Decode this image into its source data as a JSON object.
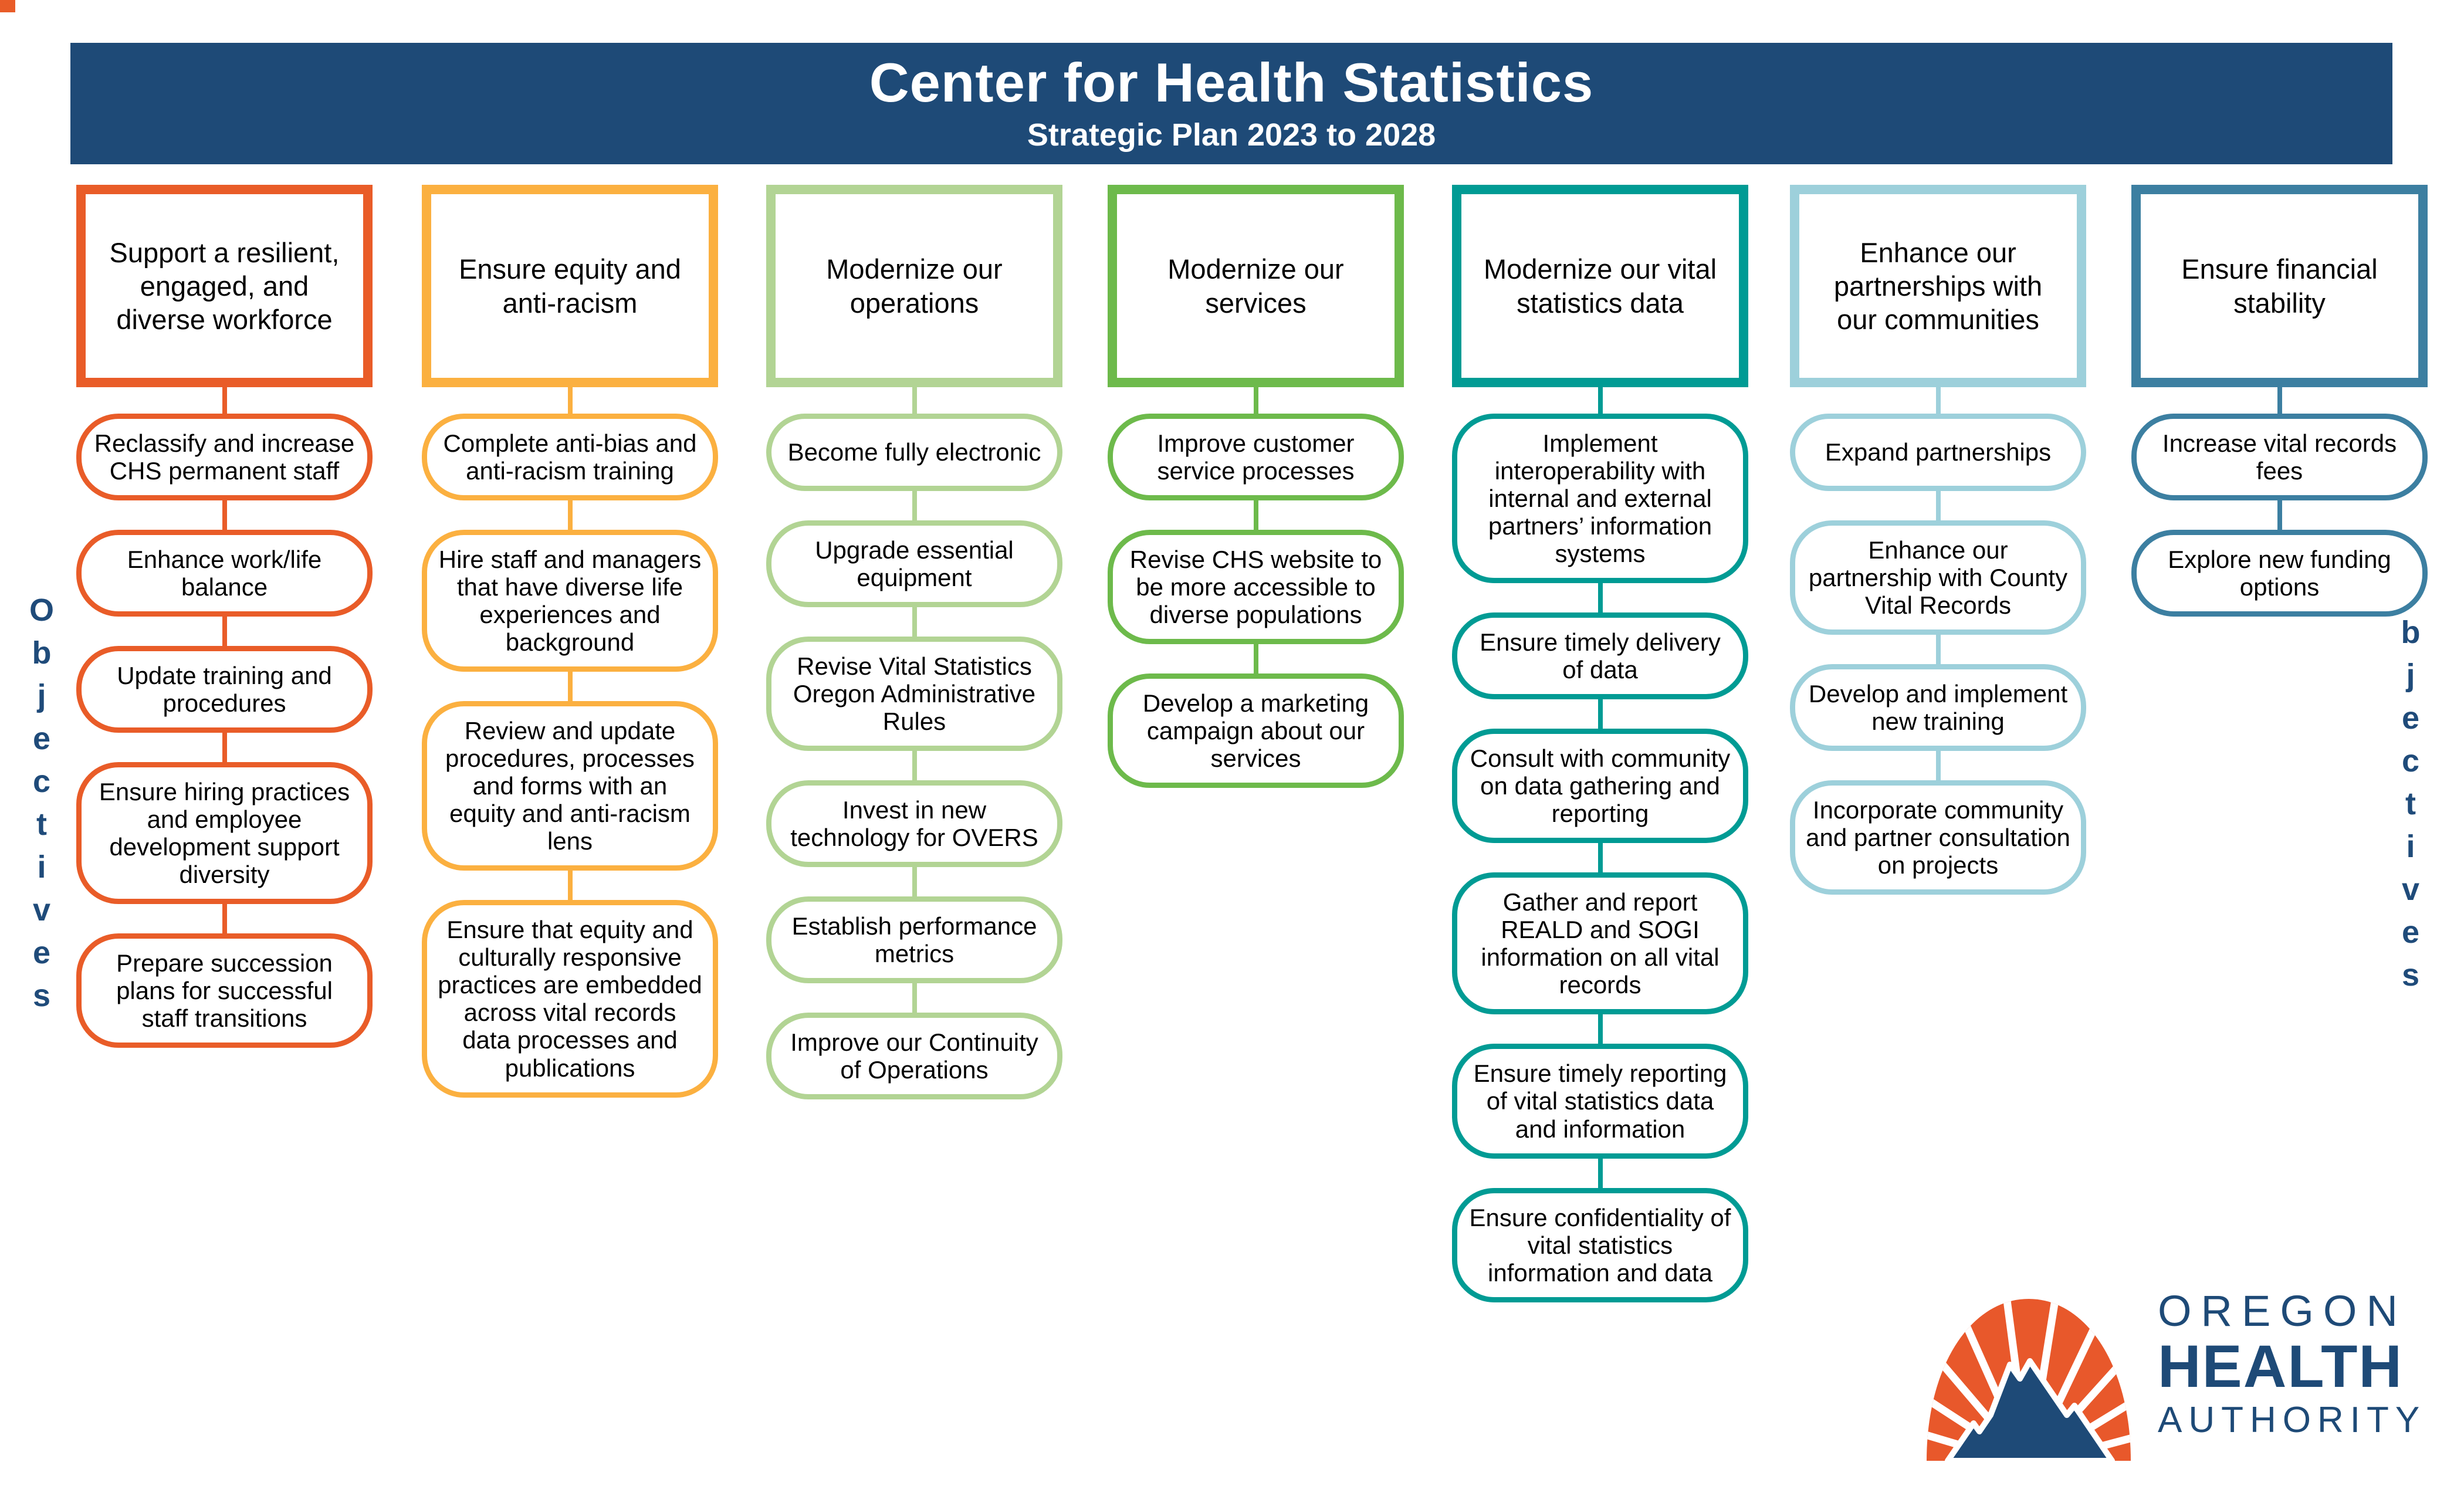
{
  "banner": {
    "title": "Center for Health Statistics",
    "subtitle": "Strategic Plan 2023 to 2028",
    "bg_color": "#1E4A77",
    "text_color": "#FFFFFF"
  },
  "side_labels": {
    "left": "Objectives",
    "right": "Objectives",
    "color": "#1F4B7A"
  },
  "columns": [
    {
      "header": "Support a resilient, engaged, and diverse workforce",
      "color": "#E95C28",
      "objectives": [
        "Reclassify and increase CHS permanent staff",
        "Enhance work/life balance",
        "Update training and procedures",
        "Ensure hiring practices and employee development support diversity",
        "Prepare succession plans for successful staff transitions"
      ]
    },
    {
      "header": "Ensure equity and anti-racism",
      "color": "#FBB040",
      "objectives": [
        "Complete anti-bias and anti-racism training",
        "Hire staff and managers that have diverse life experiences and background",
        "Review and update procedures, processes and forms with an equity and anti-racism lens",
        "Ensure that equity and culturally responsive practices are embedded across vital records data processes and publications"
      ]
    },
    {
      "header": "Modernize our operations",
      "color": "#B2D494",
      "objectives": [
        "Become fully electronic",
        "Upgrade essential equipment",
        "Revise Vital Statistics Oregon Administrative Rules",
        "Invest in new technology for OVERS",
        "Establish performance metrics",
        "Improve our Continuity of Operations"
      ]
    },
    {
      "header": "Modernize our services",
      "color": "#6DBA4B",
      "objectives": [
        "Improve customer service processes",
        "Revise CHS website to be more accessible to diverse populations",
        "Develop a marketing campaign about our services"
      ]
    },
    {
      "header": "Modernize our vital statistics data",
      "color": "#009B94",
      "objectives": [
        "Implement interoperability with internal and external partners’ information systems",
        "Ensure timely delivery of data",
        "Consult with community on data gathering and reporting",
        "Gather and report REALD and SOGI information on all vital records",
        "Ensure timely reporting of vital statistics data and information",
        "Ensure confidentiality of vital statistics information and data"
      ]
    },
    {
      "header": "Enhance our partnerships with our communities",
      "color": "#9DD0DB",
      "objectives": [
        "Expand partnerships",
        "Enhance our partnership with County Vital Records",
        "Develop and implement new training",
        "Incorporate community and partner consultation on projects"
      ]
    },
    {
      "header": "Ensure financial stability",
      "color": "#3C7FA1",
      "objectives": [
        "Increase vital records fees",
        "Explore new funding options"
      ]
    }
  ],
  "logo": {
    "line1": "OREGON",
    "line2": "HEALTH",
    "line3": "AUTHORITY",
    "orange": "#E8582B",
    "navy": "#1E4A77"
  }
}
